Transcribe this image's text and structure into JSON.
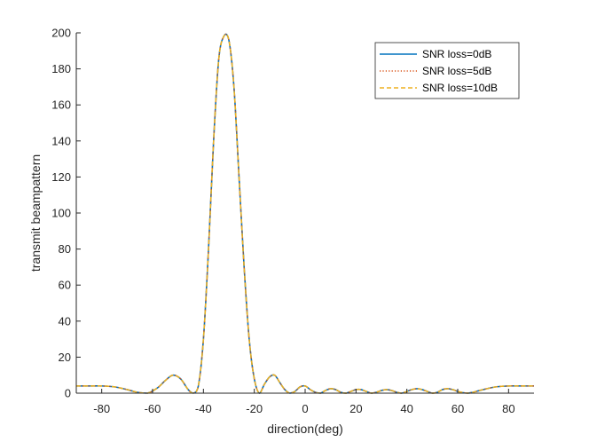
{
  "chart_data": {
    "type": "line",
    "title": "",
    "xlabel": "direction(deg)",
    "ylabel": "transmit beampattern",
    "xlim": [
      -90,
      90
    ],
    "ylim": [
      0,
      200
    ],
    "xticks": [
      -80,
      -60,
      -40,
      -20,
      0,
      20,
      40,
      60,
      80
    ],
    "yticks": [
      0,
      20,
      40,
      60,
      80,
      100,
      120,
      140,
      160,
      180,
      200
    ],
    "grid": false,
    "legend_position": "top-right",
    "x": [
      -90,
      -85,
      -80,
      -75,
      -70,
      -66,
      -62,
      -58,
      -55,
      -52,
      -49,
      -46,
      -44,
      -42,
      -40,
      -38,
      -36,
      -34,
      -32,
      -30,
      -28,
      -26,
      -24,
      -22,
      -20,
      -18,
      -16,
      -14,
      -12,
      -10,
      -8,
      -6,
      -4,
      -2,
      0,
      2,
      4,
      6,
      8,
      10,
      12,
      14,
      16,
      18,
      20,
      22,
      24,
      26,
      28,
      30,
      32,
      34,
      36,
      38,
      40,
      42,
      44,
      46,
      48,
      50,
      52,
      54,
      56,
      58,
      60,
      62,
      64,
      66,
      70,
      75,
      80,
      85,
      90
    ],
    "series": [
      {
        "name": "SNR loss=0dB",
        "color": "#0072BD",
        "style": "solid",
        "values": [
          4,
          4,
          4,
          3.5,
          2,
          0.5,
          0,
          3,
          7,
          10,
          8,
          2,
          0,
          4,
          30,
          80,
          140,
          185,
          198,
          196,
          170,
          120,
          70,
          30,
          8,
          0,
          5,
          9,
          10,
          6,
          2,
          0,
          1,
          3.5,
          4,
          2,
          0.5,
          0,
          1.5,
          2.5,
          2,
          0.5,
          0,
          1,
          2,
          2,
          1,
          0,
          0.5,
          1.5,
          2,
          1.5,
          0.5,
          0,
          1,
          2,
          2.5,
          2,
          1,
          0,
          0.5,
          2,
          2.5,
          2,
          1,
          0.3,
          0,
          0.5,
          2,
          3.5,
          4,
          4,
          4
        ]
      },
      {
        "name": "SNR loss=5dB",
        "color": "#D95319",
        "style": "dotted",
        "values": [
          4,
          4,
          4,
          3.5,
          2,
          0.5,
          0,
          3,
          7,
          10,
          8,
          2,
          0,
          4,
          30,
          80,
          140,
          185,
          198,
          196,
          170,
          120,
          70,
          30,
          8,
          0,
          5,
          9,
          10,
          6,
          2,
          0,
          1,
          3.5,
          4,
          2,
          0.5,
          0,
          1.5,
          2.5,
          2,
          0.5,
          0,
          1,
          2,
          2,
          1,
          0,
          0.5,
          1.5,
          2,
          1.5,
          0.5,
          0,
          1,
          2,
          2.5,
          2,
          1,
          0,
          0.5,
          2,
          2.5,
          2,
          1,
          0.3,
          0,
          0.5,
          2,
          3.5,
          4,
          4,
          4
        ]
      },
      {
        "name": "SNR loss=10dB",
        "color": "#EDB120",
        "style": "dashed",
        "values": [
          4,
          4,
          4,
          3.5,
          2,
          0.5,
          0,
          3,
          7,
          10,
          8,
          2,
          0,
          4,
          30,
          80,
          140,
          185,
          198,
          196,
          170,
          120,
          70,
          30,
          8,
          0,
          5,
          9,
          10,
          6,
          2,
          0,
          1,
          3.5,
          4,
          2,
          0.5,
          0,
          1.5,
          2.5,
          2,
          0.5,
          0,
          1,
          2,
          2,
          1,
          0,
          0.5,
          1.5,
          2,
          1.5,
          0.5,
          0,
          1,
          2,
          2.5,
          2,
          1,
          0,
          0.5,
          2,
          2.5,
          2,
          1,
          0.3,
          0,
          0.5,
          2,
          3.5,
          4,
          4,
          4
        ]
      }
    ]
  }
}
